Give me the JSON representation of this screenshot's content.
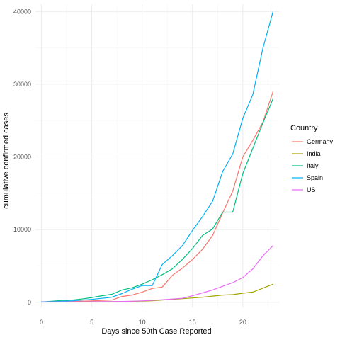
{
  "chart_data": {
    "type": "line",
    "xlabel": "Days since 50th Case Reported",
    "ylabel": "cumulative confirmed cases",
    "xlim": [
      -0.6,
      23.6
    ],
    "ylim": [
      -700,
      41000
    ],
    "x_ticks": [
      0,
      5,
      10,
      15,
      20
    ],
    "x_tick_labels": [
      "0",
      "5",
      "10",
      "15",
      "20"
    ],
    "y_ticks": [
      0,
      10000,
      20000,
      30000,
      40000
    ],
    "y_tick_labels": [
      "0",
      "10000",
      "20000",
      "30000",
      "40000"
    ],
    "grid": true,
    "legend": {
      "title": "Country",
      "position": "right"
    },
    "series": [
      {
        "name": "Germany",
        "color": "#F8766D",
        "x": [
          0,
          1,
          2,
          3,
          4,
          5,
          6,
          7,
          8,
          9,
          10,
          11,
          12,
          13,
          14,
          15,
          16,
          17,
          18,
          19,
          20,
          21,
          22,
          23
        ],
        "values": [
          50,
          70,
          100,
          130,
          160,
          190,
          250,
          300,
          800,
          1000,
          1400,
          1900,
          2100,
          3700,
          4700,
          5900,
          7300,
          9200,
          12300,
          15300,
          20000,
          22300,
          24800,
          29000
        ]
      },
      {
        "name": "India",
        "color": "#A3A500",
        "x": [
          0,
          1,
          2,
          3,
          4,
          5,
          6,
          7,
          8,
          9,
          10,
          11,
          12,
          13,
          14,
          15,
          16,
          17,
          18,
          19,
          20,
          21,
          22,
          23
        ],
        "values": [
          50,
          55,
          60,
          65,
          75,
          80,
          90,
          100,
          110,
          130,
          160,
          210,
          300,
          400,
          500,
          600,
          700,
          850,
          1000,
          1050,
          1250,
          1400,
          1950,
          2500
        ]
      },
      {
        "name": "Italy",
        "color": "#00BF7D",
        "x": [
          0,
          1,
          2,
          3,
          4,
          5,
          6,
          7,
          8,
          9,
          10,
          11,
          12,
          13,
          14,
          15,
          16,
          17,
          18,
          19,
          20,
          21,
          22,
          23
        ],
        "values": [
          50,
          150,
          250,
          300,
          450,
          650,
          900,
          1100,
          1700,
          2000,
          2500,
          3100,
          3800,
          4600,
          5900,
          7400,
          9200,
          10100,
          12400,
          12400,
          17700,
          21200,
          24700,
          28000
        ]
      },
      {
        "name": "Spain",
        "color": "#00B0F6",
        "x": [
          0,
          1,
          2,
          3,
          4,
          5,
          6,
          7,
          8,
          9,
          10,
          11,
          12,
          13,
          14,
          15,
          16,
          17,
          18,
          19,
          20,
          21,
          22,
          23
        ],
        "values": [
          50,
          100,
          150,
          200,
          300,
          400,
          550,
          700,
          1200,
          1800,
          2300,
          2300,
          5200,
          6400,
          7800,
          9900,
          11800,
          13900,
          18000,
          20400,
          25300,
          28600,
          35000,
          40000
        ]
      },
      {
        "name": "US",
        "color": "#E76BF3",
        "x": [
          0,
          1,
          2,
          3,
          4,
          5,
          6,
          7,
          8,
          9,
          10,
          11,
          12,
          13,
          14,
          15,
          16,
          17,
          18,
          19,
          20,
          21,
          22,
          23
        ],
        "values": [
          50,
          55,
          60,
          65,
          70,
          80,
          90,
          100,
          120,
          150,
          200,
          270,
          350,
          450,
          550,
          900,
          1300,
          1700,
          2200,
          2700,
          3400,
          4600,
          6400,
          7800
        ]
      }
    ]
  }
}
